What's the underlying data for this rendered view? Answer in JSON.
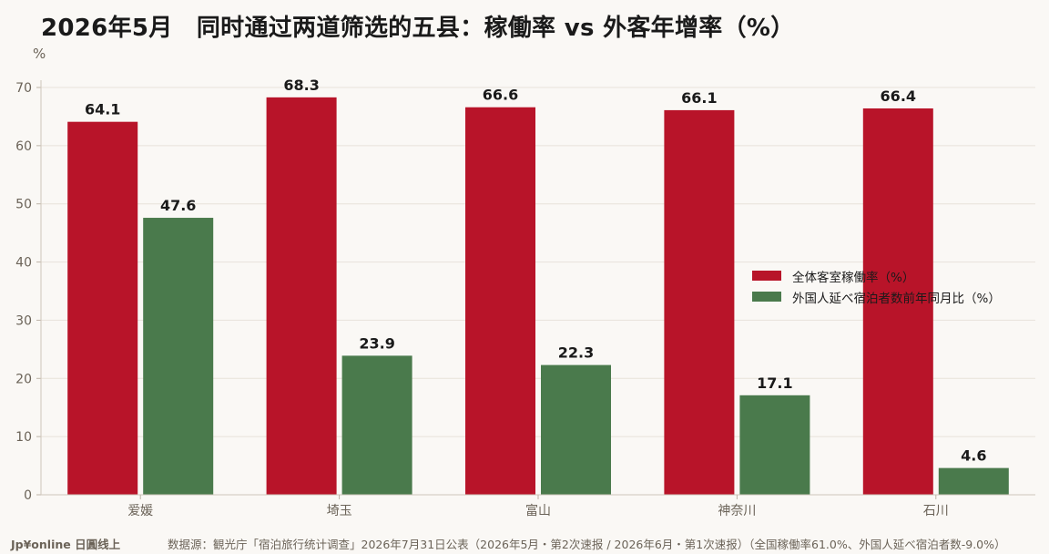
{
  "header": {
    "title": "2026年5月　同时通过两道筛选的五县：稼働率 vs 外客年增率（%）",
    "unit": "%"
  },
  "footer": {
    "brand": "Jp¥online 日圓线上",
    "source": "数据源：観光庁「宿泊旅行统计调查」2026年7月31日公表（2026年5月・第2次速报 / 2026年6月・第1次速报）（全国稼働率61.0%、外国人延べ宿泊者数-9.0%）"
  },
  "colors": {
    "series_1": "#b81429",
    "series_2": "#4a7a4c",
    "grid": "#e8e2da",
    "axis_text": "#6b6358"
  },
  "chart_data": {
    "type": "bar",
    "categories": [
      "爱媛",
      "埼玉",
      "富山",
      "神奈川",
      "石川"
    ],
    "series": [
      {
        "name": "全体客室稼働率（%）",
        "values": [
          64.1,
          68.3,
          66.6,
          66.1,
          66.4
        ]
      },
      {
        "name": "外国人延べ宿泊者数前年同月比（%）",
        "values": [
          47.6,
          23.9,
          22.3,
          17.1,
          4.6
        ]
      }
    ],
    "ylim": [
      0,
      70
    ],
    "yticks": [
      "0",
      "10",
      "20",
      "30",
      "40",
      "50",
      "60",
      "70"
    ],
    "ylabel": "%",
    "grid": true,
    "legend_position": "right"
  }
}
